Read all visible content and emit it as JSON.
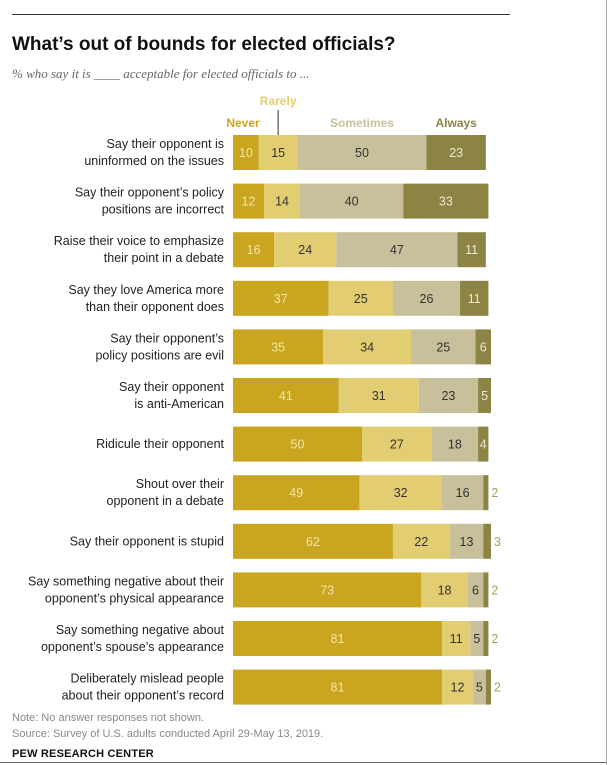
{
  "title": "What’s out of bounds for elected officials?",
  "subtitle": "% who say it is ____ acceptable for elected officials to ...",
  "note": "Note: No answer responses not shown.",
  "source": "Source: Survey of U.S. adults conducted April 29-May 13, 2019.",
  "brand": "PEW RESEARCH CENTER",
  "chart_data": {
    "type": "bar",
    "orientation": "horizontal",
    "stacked": true,
    "xlim": [
      0,
      100
    ],
    "categories": [
      [
        "Say their opponent is",
        "uninformed on the issues"
      ],
      [
        "Say their opponent’s policy",
        "positions are incorrect"
      ],
      [
        "Raise their voice to emphasize",
        "their point in a debate"
      ],
      [
        "Say they love America more",
        "than their opponent does"
      ],
      [
        "Say their opponent’s",
        "policy positions are evil"
      ],
      [
        "Say their opponent",
        "is anti-American"
      ],
      [
        "Ridicule their opponent"
      ],
      [
        "Shout over their",
        "opponent in a debate"
      ],
      [
        "Say their opponent is stupid"
      ],
      [
        "Say something negative about their",
        "opponent’s physical appearance"
      ],
      [
        "Say something negative about",
        "opponent’s spouse’s appearance"
      ],
      [
        "Deliberately mislead people",
        "about their opponent’s record"
      ]
    ],
    "series": [
      {
        "name": "Never",
        "color": "#c9a520",
        "label_color": "#f3e6a6",
        "values": [
          10,
          12,
          16,
          37,
          35,
          41,
          50,
          49,
          62,
          73,
          81,
          81
        ]
      },
      {
        "name": "Rarely",
        "color": "#e3cd72",
        "label_color": "#333333",
        "values": [
          15,
          14,
          24,
          25,
          34,
          31,
          27,
          32,
          22,
          18,
          11,
          12
        ]
      },
      {
        "name": "Sometimes",
        "color": "#c7c09a",
        "label_color": "#333333",
        "values": [
          50,
          40,
          47,
          26,
          25,
          23,
          18,
          16,
          13,
          6,
          5,
          5
        ]
      },
      {
        "name": "Always",
        "color": "#8c8445",
        "label_color": "#ece8d0",
        "values": [
          23,
          33,
          11,
          11,
          6,
          5,
          4,
          2,
          3,
          2,
          2,
          2
        ]
      }
    ]
  }
}
